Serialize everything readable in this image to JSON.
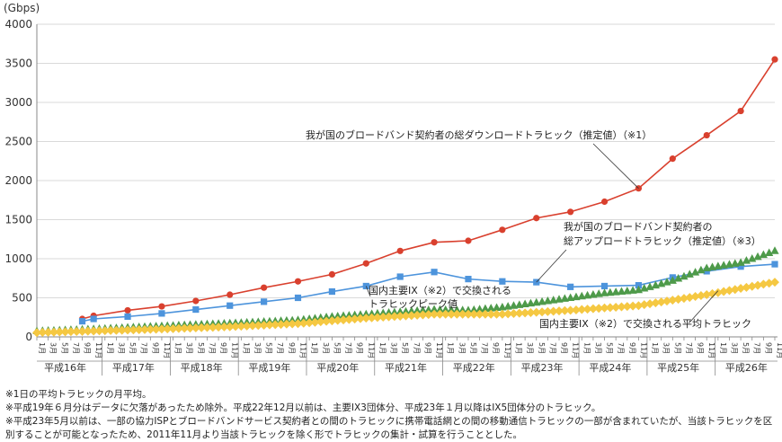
{
  "chart_data": {
    "type": "line",
    "ylabel": "(Gbps)",
    "ylim": [
      0,
      4000
    ],
    "y_ticks": [
      "0",
      "500",
      "1000",
      "1500",
      "2000",
      "2500",
      "3000",
      "3500",
      "4000"
    ],
    "years": [
      "平成16年",
      "平成17年",
      "平成18年",
      "平成19年",
      "平成20年",
      "平成21年",
      "平成22年",
      "平成23年",
      "平成24年",
      "平成25年",
      "平成26年"
    ],
    "month_labels": [
      "1月",
      "3月",
      "5月",
      "7月",
      "9月",
      "11月"
    ],
    "x_start": {
      "year_index": 0,
      "month": 1
    },
    "x_end": {
      "year_index": 10,
      "month": 11
    },
    "series": [
      {
        "name": "我が国のブロードバンド契約者の総ダウンロードトラヒック（推定値）（※1）",
        "color": "#d9402e",
        "marker": "circle",
        "points": [
          {
            "year_index": 0,
            "month": 9,
            "value": 230
          },
          {
            "year_index": 0,
            "month": 11,
            "value": 270
          },
          {
            "year_index": 1,
            "month": 5,
            "value": 340
          },
          {
            "year_index": 1,
            "month": 11,
            "value": 390
          },
          {
            "year_index": 2,
            "month": 5,
            "value": 460
          },
          {
            "year_index": 2,
            "month": 11,
            "value": 540
          },
          {
            "year_index": 3,
            "month": 5,
            "value": 630
          },
          {
            "year_index": 3,
            "month": 11,
            "value": 710
          },
          {
            "year_index": 4,
            "month": 5,
            "value": 800
          },
          {
            "year_index": 4,
            "month": 11,
            "value": 940
          },
          {
            "year_index": 5,
            "month": 5,
            "value": 1100
          },
          {
            "year_index": 5,
            "month": 11,
            "value": 1210
          },
          {
            "year_index": 6,
            "month": 5,
            "value": 1230
          },
          {
            "year_index": 6,
            "month": 11,
            "value": 1370
          },
          {
            "year_index": 7,
            "month": 5,
            "value": 1520
          },
          {
            "year_index": 7,
            "month": 11,
            "value": 1600
          },
          {
            "year_index": 8,
            "month": 5,
            "value": 1730
          },
          {
            "year_index": 8,
            "month": 11,
            "value": 1900
          },
          {
            "year_index": 9,
            "month": 5,
            "value": 2280
          },
          {
            "year_index": 9,
            "month": 11,
            "value": 2580
          },
          {
            "year_index": 10,
            "month": 5,
            "value": 2890
          },
          {
            "year_index": 10,
            "month": 11,
            "value": 3550
          }
        ]
      },
      {
        "name": "国内主要IX（※2）で交換されるトラヒックピーク値",
        "color": "#4d94dc",
        "marker": "square",
        "points": [
          {
            "year_index": 0,
            "month": 9,
            "value": 200
          },
          {
            "year_index": 0,
            "month": 11,
            "value": 230
          },
          {
            "year_index": 1,
            "month": 5,
            "value": 260
          },
          {
            "year_index": 1,
            "month": 11,
            "value": 300
          },
          {
            "year_index": 2,
            "month": 5,
            "value": 350
          },
          {
            "year_index": 2,
            "month": 11,
            "value": 400
          },
          {
            "year_index": 3,
            "month": 5,
            "value": 450
          },
          {
            "year_index": 3,
            "month": 11,
            "value": 500
          },
          {
            "year_index": 4,
            "month": 5,
            "value": 580
          },
          {
            "year_index": 4,
            "month": 11,
            "value": 650
          },
          {
            "year_index": 5,
            "month": 5,
            "value": 770
          },
          {
            "year_index": 5,
            "month": 11,
            "value": 830
          },
          {
            "year_index": 6,
            "month": 5,
            "value": 740
          },
          {
            "year_index": 6,
            "month": 11,
            "value": 710
          },
          {
            "year_index": 7,
            "month": 5,
            "value": 700
          },
          {
            "year_index": 7,
            "month": 11,
            "value": 640
          },
          {
            "year_index": 8,
            "month": 5,
            "value": 650
          },
          {
            "year_index": 8,
            "month": 11,
            "value": 660
          },
          {
            "year_index": 9,
            "month": 5,
            "value": 760
          },
          {
            "year_index": 9,
            "month": 11,
            "value": 840
          },
          {
            "year_index": 10,
            "month": 5,
            "value": 900
          },
          {
            "year_index": 10,
            "month": 11,
            "value": 930
          }
        ]
      },
      {
        "name": "我が国のブロードバンド契約者の総アップロードトラヒック（推定値）（※3）",
        "color": "#4e9a4a",
        "marker": "triangle",
        "points": [
          {
            "year_index": 0,
            "month": 1,
            "value": 75
          },
          {
            "year_index": 0,
            "month": 11,
            "value": 100
          },
          {
            "year_index": 1,
            "month": 11,
            "value": 140
          },
          {
            "year_index": 2,
            "month": 11,
            "value": 175
          },
          {
            "year_index": 3,
            "month": 11,
            "value": 215
          },
          {
            "year_index": 4,
            "month": 5,
            "value": 260
          },
          {
            "year_index": 4,
            "month": 11,
            "value": 290
          },
          {
            "year_index": 5,
            "month": 5,
            "value": 320
          },
          {
            "year_index": 5,
            "month": 11,
            "value": 350
          },
          {
            "year_index": 6,
            "month": 5,
            "value": 340
          },
          {
            "year_index": 6,
            "month": 11,
            "value": 380
          },
          {
            "year_index": 7,
            "month": 5,
            "value": 440
          },
          {
            "year_index": 7,
            "month": 11,
            "value": 500
          },
          {
            "year_index": 8,
            "month": 5,
            "value": 560
          },
          {
            "year_index": 8,
            "month": 11,
            "value": 600
          },
          {
            "year_index": 9,
            "month": 5,
            "value": 720
          },
          {
            "year_index": 9,
            "month": 11,
            "value": 880
          },
          {
            "year_index": 10,
            "month": 5,
            "value": 950
          },
          {
            "year_index": 10,
            "month": 11,
            "value": 1100
          }
        ]
      },
      {
        "name": "国内主要IX（※2）で交換される平均トラヒック",
        "color": "#f5c842",
        "marker": "diamond",
        "points": [
          {
            "year_index": 0,
            "month": 1,
            "value": 55
          },
          {
            "year_index": 0,
            "month": 11,
            "value": 75
          },
          {
            "year_index": 1,
            "month": 11,
            "value": 100
          },
          {
            "year_index": 2,
            "month": 11,
            "value": 130
          },
          {
            "year_index": 3,
            "month": 11,
            "value": 170
          },
          {
            "year_index": 4,
            "month": 11,
            "value": 240
          },
          {
            "year_index": 5,
            "month": 11,
            "value": 290
          },
          {
            "year_index": 6,
            "month": 11,
            "value": 290
          },
          {
            "year_index": 7,
            "month": 11,
            "value": 340
          },
          {
            "year_index": 8,
            "month": 11,
            "value": 400
          },
          {
            "year_index": 9,
            "month": 11,
            "value": 540
          },
          {
            "year_index": 10,
            "month": 11,
            "value": 700
          }
        ]
      }
    ],
    "annotations": {
      "download": "我が国のブロードバンド契約者の総ダウンロードトラヒック（推定値）（※1）",
      "upload_line1": "我が国のブロードバンド契約者の",
      "upload_line2": "総アップロードトラヒック（推定値）（※3）",
      "ix_peak_line1": "国内主要IX（※2）で交換される",
      "ix_peak_line2": "トラヒックピーク値",
      "ix_average": "国内主要IX（※2）で交換される平均トラヒック"
    }
  },
  "notes": [
    "※1日の平均トラヒックの月平均。",
    "※平成19年６月分はデータに欠落があったため除外。平成22年12月以前は、主要IX3団体分、平成23年１月以降はIX5団体分のトラヒック。",
    "※平成23年5月以前は、一部の協力ISPとブロードバンドサービス契約者との間のトラヒックに携帯電話網との間の移動通信トラヒックの一部が含まれていたが、当該トラヒックを区別することが可能となったため、2011年11月より当該トラヒックを除く形でトラヒックの集計・試算を行うこととした。"
  ]
}
